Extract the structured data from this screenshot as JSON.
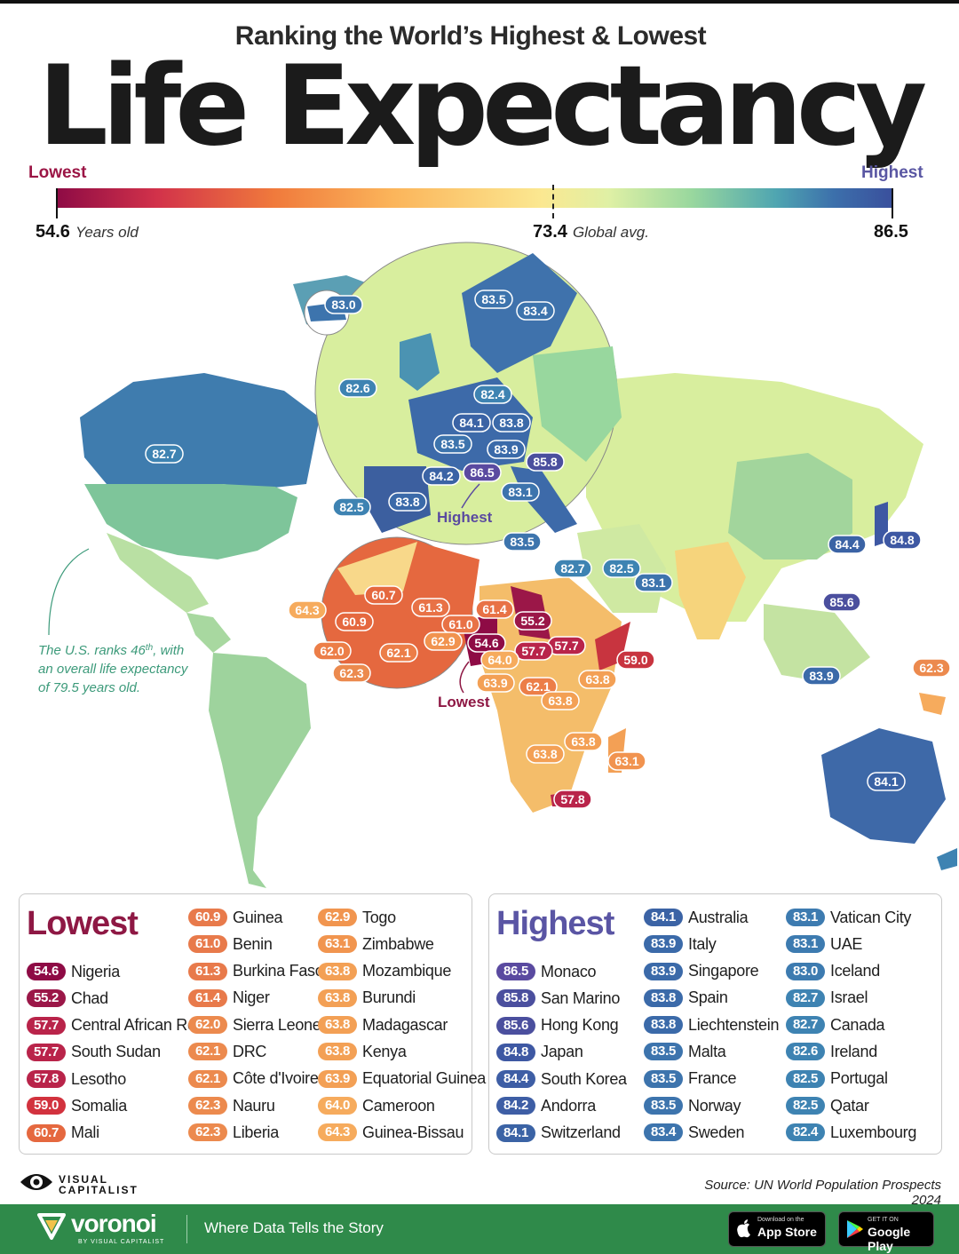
{
  "header": {
    "subtitle": "Ranking the World’s Highest & Lowest",
    "title": "Life Expectancy"
  },
  "scale": {
    "low_word": "Lowest",
    "high_word": "Highest",
    "min_value": "54.6",
    "min_caption": "Years old",
    "avg_value": "73.4",
    "avg_caption": "Global avg.",
    "max_value": "86.5",
    "colors": [
      "#8e0b45",
      "#d2324a",
      "#f07a3c",
      "#fbb45a",
      "#fbe891",
      "#dff0a5",
      "#98d79e",
      "#4fa5b1",
      "#3c6fab",
      "#3a4f9c"
    ]
  },
  "map": {
    "us_note": [
      "The U.S. ranks 46",
      "th",
      ", with",
      "an overall life expectancy",
      "of 79.5 years old."
    ],
    "highest_callout": "Highest",
    "lowest_callout": "Lowest",
    "labels": [
      {
        "v": "83.0",
        "c": "#3d74ad"
      },
      {
        "v": "83.5",
        "c": "#3d74ad"
      },
      {
        "v": "83.4",
        "c": "#3d74ad"
      },
      {
        "v": "82.6",
        "c": "#3e83b2"
      },
      {
        "v": "82.4",
        "c": "#3e83b2"
      },
      {
        "v": "84.1",
        "c": "#3b63a5"
      },
      {
        "v": "83.8",
        "c": "#3b6aa9"
      },
      {
        "v": "83.5",
        "c": "#3d74ad"
      },
      {
        "v": "83.9",
        "c": "#3b6aa9"
      },
      {
        "v": "85.8",
        "c": "#4b4f9e"
      },
      {
        "v": "84.2",
        "c": "#3b63a5"
      },
      {
        "v": "86.5",
        "c": "#5a4aa0"
      },
      {
        "v": "83.1",
        "c": "#3d74ad"
      },
      {
        "v": "82.5",
        "c": "#3e83b2"
      },
      {
        "v": "83.8",
        "c": "#3b6aa9"
      },
      {
        "v": "83.5",
        "c": "#3d74ad"
      },
      {
        "v": "82.7",
        "c": "#3e83b2"
      },
      {
        "v": "82.5",
        "c": "#3e83b2"
      },
      {
        "v": "83.1",
        "c": "#3d74ad"
      },
      {
        "v": "82.7",
        "c": "#3e83b2"
      },
      {
        "v": "84.4",
        "c": "#3b63a5"
      },
      {
        "v": "84.8",
        "c": "#3e58a3"
      },
      {
        "v": "85.6",
        "c": "#4b4f9e"
      },
      {
        "v": "83.9",
        "c": "#3b6aa9"
      },
      {
        "v": "84.1",
        "c": "#3b63a5"
      },
      {
        "v": "62.3",
        "c": "#ec8a4e"
      },
      {
        "v": "60.7",
        "c": "#e5683f"
      },
      {
        "v": "64.3",
        "c": "#f6ab5d"
      },
      {
        "v": "60.9",
        "c": "#e5683f"
      },
      {
        "v": "61.3",
        "c": "#e87246"
      },
      {
        "v": "61.0",
        "c": "#e87246"
      },
      {
        "v": "61.4",
        "c": "#e87246"
      },
      {
        "v": "55.2",
        "c": "#9b1748"
      },
      {
        "v": "62.9",
        "c": "#f1934f"
      },
      {
        "v": "54.6",
        "c": "#8e0b45"
      },
      {
        "v": "57.7",
        "c": "#b9244a"
      },
      {
        "v": "57.7",
        "c": "#b9244a"
      },
      {
        "v": "62.0",
        "c": "#ec7e48"
      },
      {
        "v": "62.1",
        "c": "#ec7e48"
      },
      {
        "v": "62.3",
        "c": "#ec8a4e"
      },
      {
        "v": "64.0",
        "c": "#f6ab5d"
      },
      {
        "v": "59.0",
        "c": "#c8343f"
      },
      {
        "v": "63.9",
        "c": "#f3a055"
      },
      {
        "v": "62.1",
        "c": "#ec7e48"
      },
      {
        "v": "63.8",
        "c": "#f3a055"
      },
      {
        "v": "63.8",
        "c": "#f3a055"
      },
      {
        "v": "63.8",
        "c": "#f3a055"
      },
      {
        "v": "63.1",
        "c": "#f1934f"
      },
      {
        "v": "63.8",
        "c": "#f3a055"
      },
      {
        "v": "57.8",
        "c": "#b9244a"
      }
    ]
  },
  "lowest": {
    "title": "Lowest",
    "columns": [
      [
        {
          "value": "54.6",
          "name": "Nigeria",
          "color": "#8e0b45"
        },
        {
          "value": "55.2",
          "name": "Chad",
          "color": "#9b1748"
        },
        {
          "value": "57.7",
          "name": "Central African Rep",
          "color": "#b9244a"
        },
        {
          "value": "57.7",
          "name": "South Sudan",
          "color": "#b9244a"
        },
        {
          "value": "57.8",
          "name": "Lesotho",
          "color": "#b9244a"
        },
        {
          "value": "59.0",
          "name": "Somalia",
          "color": "#d2323e"
        },
        {
          "value": "60.7",
          "name": "Mali",
          "color": "#e5683f"
        }
      ],
      [
        {
          "value": "60.9",
          "name": "Guinea",
          "color": "#e87a4b"
        },
        {
          "value": "61.0",
          "name": "Benin",
          "color": "#e87a4b"
        },
        {
          "value": "61.3",
          "name": "Burkina Faso",
          "color": "#e87a4b"
        },
        {
          "value": "61.4",
          "name": "Niger",
          "color": "#e87a4b"
        },
        {
          "value": "62.0",
          "name": "Sierra Leone",
          "color": "#ec8a4e"
        },
        {
          "value": "62.1",
          "name": "DRC",
          "color": "#ec8a4e"
        },
        {
          "value": "62.1",
          "name": "Côte d'Ivoire",
          "color": "#ec8a4e"
        },
        {
          "value": "62.3",
          "name": "Nauru",
          "color": "#ec8a4e"
        },
        {
          "value": "62.3",
          "name": "Liberia",
          "color": "#ec8a4e"
        }
      ],
      [
        {
          "value": "62.9",
          "name": "Togo",
          "color": "#f1954f"
        },
        {
          "value": "63.1",
          "name": "Zimbabwe",
          "color": "#f1954f"
        },
        {
          "value": "63.8",
          "name": "Mozambique",
          "color": "#f3a055"
        },
        {
          "value": "63.8",
          "name": "Burundi",
          "color": "#f3a055"
        },
        {
          "value": "63.8",
          "name": "Madagascar",
          "color": "#f3a055"
        },
        {
          "value": "63.8",
          "name": "Kenya",
          "color": "#f3a055"
        },
        {
          "value": "63.9",
          "name": "Equatorial Guinea",
          "color": "#f3a055"
        },
        {
          "value": "64.0",
          "name": "Cameroon",
          "color": "#f6ab5d"
        },
        {
          "value": "64.3",
          "name": "Guinea-Bissau",
          "color": "#f6ab5d"
        }
      ]
    ]
  },
  "highest": {
    "title": "Highest",
    "columns": [
      [
        {
          "value": "86.5",
          "name": "Monaco",
          "color": "#5a4aa0"
        },
        {
          "value": "85.8",
          "name": "San Marino",
          "color": "#4b4f9e"
        },
        {
          "value": "85.6",
          "name": "Hong Kong",
          "color": "#4b4f9e"
        },
        {
          "value": "84.8",
          "name": "Japan",
          "color": "#3e58a3"
        },
        {
          "value": "84.4",
          "name": "South Korea",
          "color": "#3e5ea5"
        },
        {
          "value": "84.2",
          "name": "Andorra",
          "color": "#3e5ea5"
        },
        {
          "value": "84.1",
          "name": "Switzerland",
          "color": "#3b63a5"
        }
      ],
      [
        {
          "value": "84.1",
          "name": "Australia",
          "color": "#3b63a5"
        },
        {
          "value": "83.9",
          "name": "Italy",
          "color": "#3b6aa9"
        },
        {
          "value": "83.9",
          "name": "Singapore",
          "color": "#3b6aa9"
        },
        {
          "value": "83.8",
          "name": "Spain",
          "color": "#3b6aa9"
        },
        {
          "value": "83.8",
          "name": "Liechtenstein",
          "color": "#3b6aa9"
        },
        {
          "value": "83.5",
          "name": "Malta",
          "color": "#3d74ad"
        },
        {
          "value": "83.5",
          "name": "France",
          "color": "#3d74ad"
        },
        {
          "value": "83.5",
          "name": "Norway",
          "color": "#3d74ad"
        },
        {
          "value": "83.4",
          "name": "Sweden",
          "color": "#3d74ad"
        }
      ],
      [
        {
          "value": "83.1",
          "name": "Vatican City",
          "color": "#3d7bb0"
        },
        {
          "value": "83.1",
          "name": "UAE",
          "color": "#3d7bb0"
        },
        {
          "value": "83.0",
          "name": "Iceland",
          "color": "#3d7bb0"
        },
        {
          "value": "82.7",
          "name": "Israel",
          "color": "#3e83b2"
        },
        {
          "value": "82.7",
          "name": "Canada",
          "color": "#3e83b2"
        },
        {
          "value": "82.6",
          "name": "Ireland",
          "color": "#3e83b2"
        },
        {
          "value": "82.5",
          "name": "Portugal",
          "color": "#3e83b2"
        },
        {
          "value": "82.5",
          "name": "Qatar",
          "color": "#3e83b2"
        },
        {
          "value": "82.4",
          "name": "Luxembourg",
          "color": "#3e83b2"
        }
      ]
    ]
  },
  "footer": {
    "vc_line1": "VISUAL",
    "vc_line2": "CAPITALIST",
    "source": "Source: UN World Population Prospects 2024",
    "brand": "voronoi",
    "brand_sub": "BY VISUAL CAPITALIST",
    "tagline": "Where Data Tells the Story",
    "appstore_small": "Download on the",
    "appstore_big": "App Store",
    "gplay_small": "GET IT ON",
    "gplay_big": "Google Play"
  }
}
